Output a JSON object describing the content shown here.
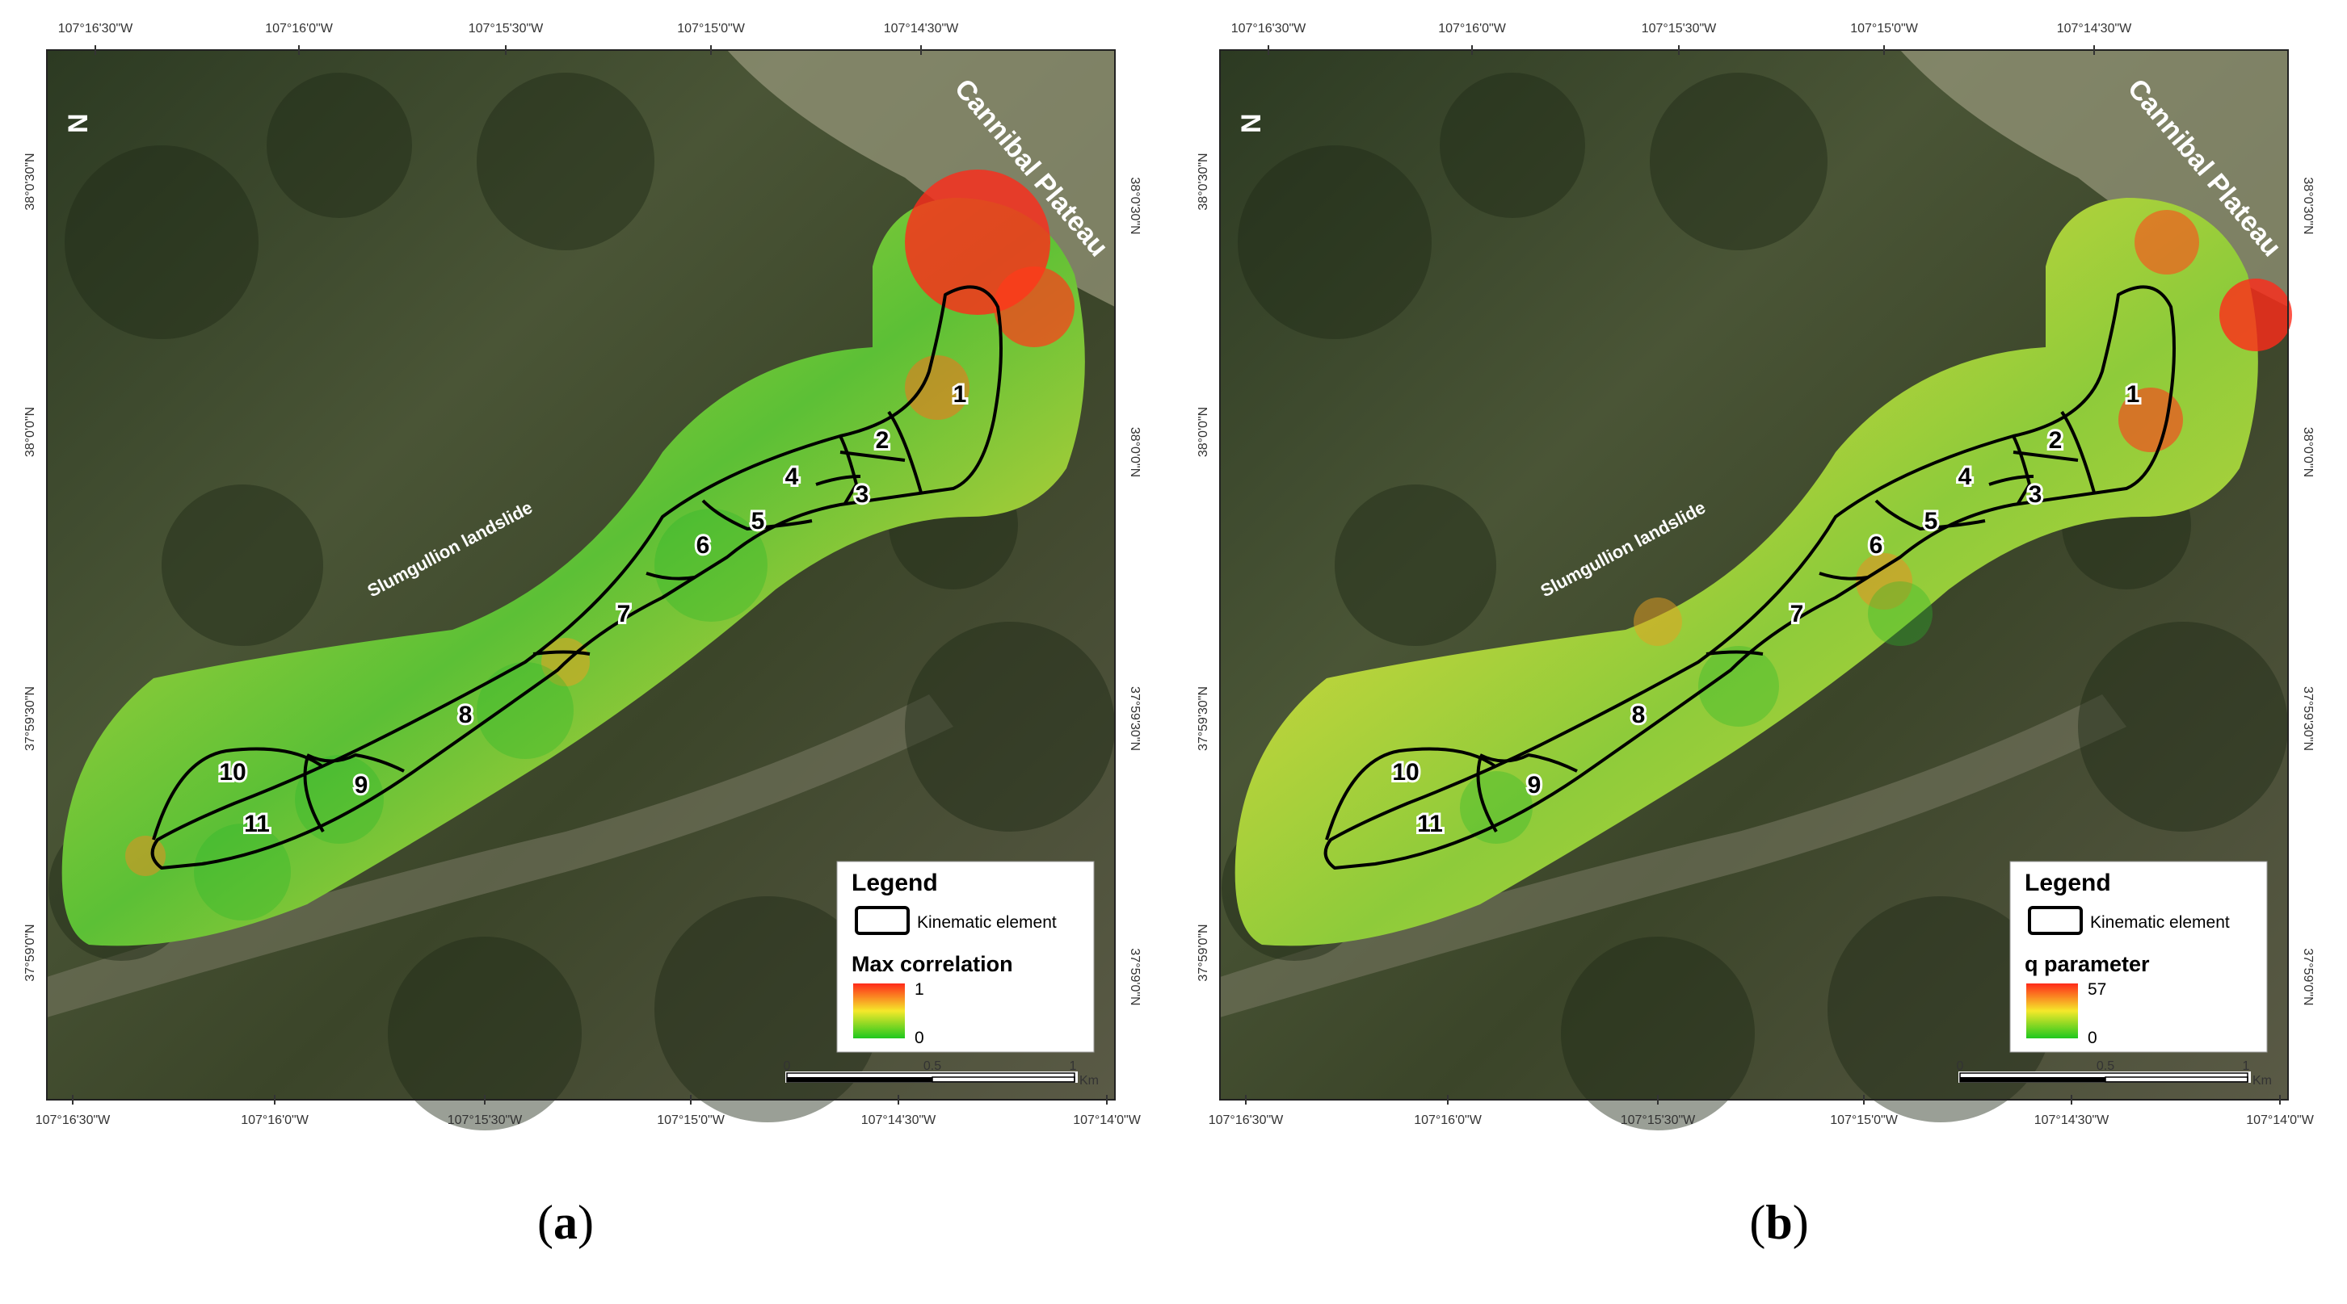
{
  "panels": [
    {
      "id": "a",
      "caption_open": "(",
      "caption_letter": "a",
      "caption_close": ")",
      "legend_title": "Legend",
      "legend_kinematic": "Kinematic element",
      "legend_param": "Max correlation",
      "legend_max": "1",
      "legend_min": "0"
    },
    {
      "id": "b",
      "caption_open": "(",
      "caption_letter": "b",
      "caption_close": ")",
      "legend_title": "Legend",
      "legend_kinematic": "Kinematic element",
      "legend_param": "q parameter",
      "legend_max": "57",
      "legend_min": "0"
    }
  ],
  "map": {
    "place_cannibal": "Cannibal Plateau",
    "place_slumgullion": "Slumgullion landslide",
    "north_symbol": "N",
    "top_ticks": [
      "107°16'30\"W",
      "107°16'0\"W",
      "107°15'30\"W",
      "107°15'0\"W",
      "107°14'30\"W"
    ],
    "bottom_ticks": [
      "107°16'30\"W",
      "107°16'0\"W",
      "107°15'30\"W",
      "107°15'0\"W",
      "107°14'30\"W",
      "107°14'0\"W"
    ],
    "left_ticks": [
      "38°0'30\"N",
      "38°0'0\"N",
      "37°59'30\"N",
      "37°59'0\"N"
    ],
    "right_ticks": [
      "38°0'30\"N",
      "38°0'0\"N",
      "37°59'30\"N",
      "37°59'0\"N"
    ],
    "scale_0": "0",
    "scale_mid": "0.5",
    "scale_end": "1",
    "scale_unit": "Km",
    "elements": [
      "1",
      "2",
      "3",
      "4",
      "5",
      "6",
      "7",
      "8",
      "9",
      "10",
      "11"
    ]
  }
}
